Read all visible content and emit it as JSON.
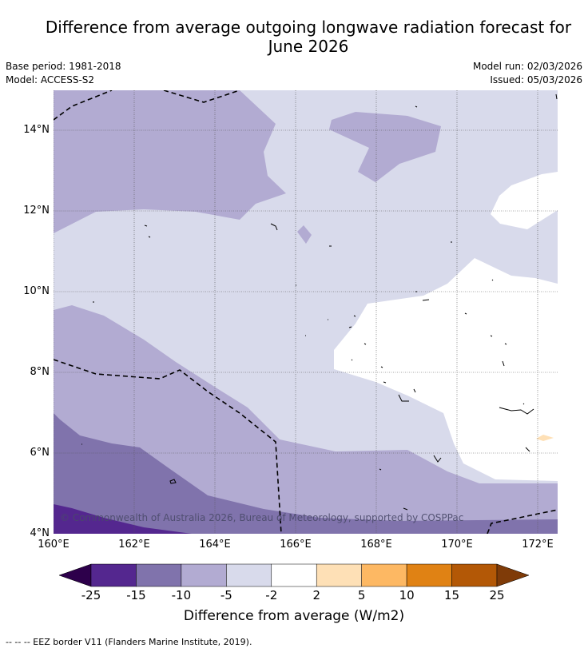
{
  "header": {
    "title_line1": "Difference from average outgoing longwave radiation forecast for",
    "title_line2": "June 2026",
    "base_period": "Base period: 1981-2018",
    "model": "Model: ACCESS-S2",
    "model_run": "Model run: 02/03/2026",
    "issued": "Issued: 05/03/2026"
  },
  "map": {
    "lat_labels": [
      "14°N",
      "12°N",
      "10°N",
      "8°N",
      "6°N",
      "4°N"
    ],
    "lon_labels": [
      "160°E",
      "162°E",
      "164°E",
      "166°E",
      "168°E",
      "170°E",
      "172°E"
    ],
    "copyright": "© Commonwealth of Australia 2026, Bureau of Meteorology, supported by COSPPac",
    "region_colors": {
      "very_low": "#54278f",
      "low": "#8073ac",
      "mid_low": "#b2abd2",
      "slightly_low": "#d8daeb",
      "neutral": "#ffffff",
      "slightly_high": "#fee0b6",
      "mid_high": "#fdb863",
      "high": "#e08214",
      "very_high": "#b35806"
    }
  },
  "colorbar": {
    "ticks": [
      "-25",
      "-15",
      "-10",
      "-5",
      "-2",
      "2",
      "5",
      "10",
      "15",
      "25"
    ],
    "colors": [
      "#54278f",
      "#8073ac",
      "#b2abd2",
      "#d8daeb",
      "#ffffff",
      "#fee0b6",
      "#fdb863",
      "#e08214",
      "#b35806"
    ],
    "under_color": "#2d004b",
    "over_color": "#7f3b08",
    "label": "Difference from average (W/m2)"
  },
  "legend": {
    "eez_note": "--  --  -- EEZ border V11 (Flanders Marine Institute, 2019)."
  }
}
